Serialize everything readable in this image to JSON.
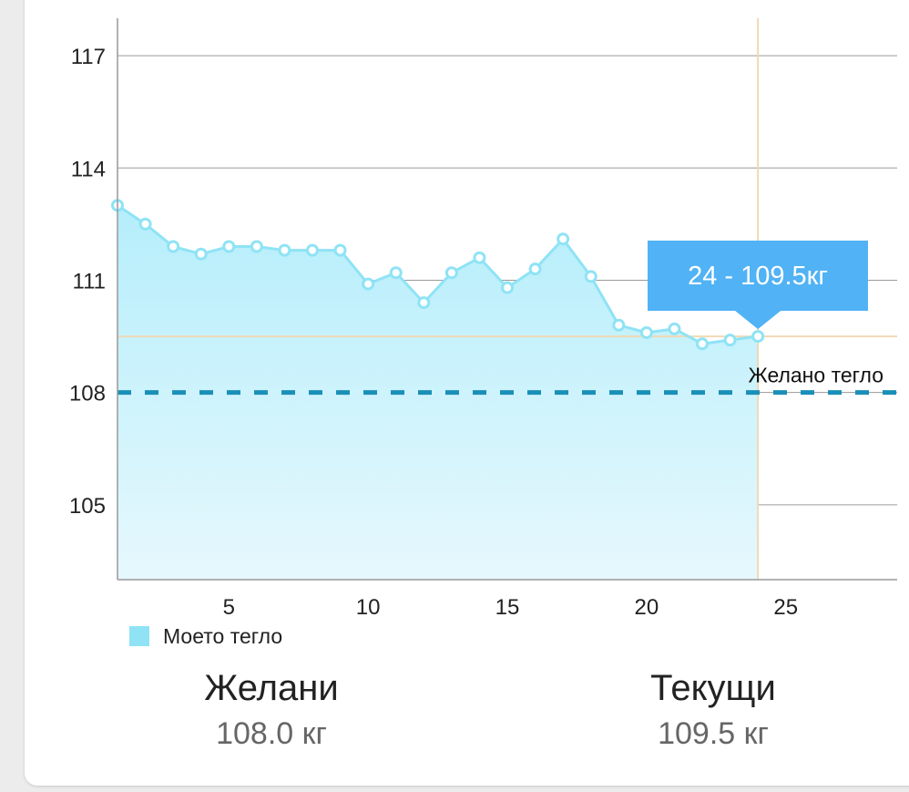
{
  "chart_data": {
    "type": "area",
    "x": [
      1,
      2,
      3,
      4,
      5,
      6,
      7,
      8,
      9,
      10,
      11,
      12,
      13,
      14,
      15,
      16,
      17,
      18,
      19,
      20,
      21,
      22,
      23,
      24
    ],
    "series": [
      {
        "name": "Моето тегло",
        "values": [
          113.0,
          112.5,
          111.9,
          111.7,
          111.9,
          111.9,
          111.8,
          111.8,
          111.8,
          110.9,
          111.2,
          110.4,
          111.2,
          111.6,
          110.8,
          111.3,
          112.1,
          111.1,
          109.8,
          109.6,
          109.7,
          109.3,
          109.4,
          109.5
        ],
        "color": "#8fe3f5"
      }
    ],
    "xlim": [
      1,
      29
    ],
    "ylim": [
      103,
      118
    ],
    "xticks": [
      "5",
      "10",
      "15",
      "20",
      "25"
    ],
    "yticks": [
      "105",
      "108",
      "111",
      "114",
      "117"
    ],
    "grid": true,
    "legend_placement": "bottom-left",
    "target_line": {
      "value": 108,
      "label": "Желано тегло",
      "color": "#1a8fb8"
    },
    "highlight": {
      "x": 24,
      "y": 109.5,
      "label": "24 - 109.5кг",
      "color": "#51b2f5",
      "crosshair_color": "#f0d9b5"
    }
  },
  "stats": {
    "target": {
      "label": "Желани",
      "value": "108.0 кг"
    },
    "current": {
      "label": "Текущи",
      "value": "109.5 кг"
    }
  }
}
